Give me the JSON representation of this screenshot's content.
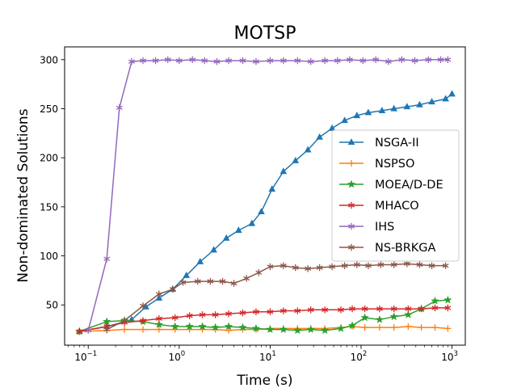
{
  "chart_data": {
    "type": "line",
    "title": "MOTSP",
    "xlabel": "Time (s)",
    "ylabel": "Non-dominated Solutions",
    "xscale": "log",
    "xlim": [
      0.055,
      1400
    ],
    "ylim": [
      9,
      313
    ],
    "x_ticks": [
      {
        "value": 0.1,
        "base": "10",
        "exp": "−1"
      },
      {
        "value": 1,
        "base": "10",
        "exp": "0"
      },
      {
        "value": 10,
        "base": "10",
        "exp": "1"
      },
      {
        "value": 100,
        "base": "10",
        "exp": "2"
      },
      {
        "value": 1000,
        "base": "10",
        "exp": "3"
      }
    ],
    "y_ticks": [
      "50",
      "100",
      "150",
      "200",
      "250",
      "300"
    ],
    "grid": false,
    "legend_position": "center-right",
    "series": [
      {
        "name": "NSGA-II",
        "color": "#1f77b4",
        "marker": "triangle",
        "points": [
          [
            0.08,
            23
          ],
          [
            0.16,
            28
          ],
          [
            0.3,
            35
          ],
          [
            0.43,
            48
          ],
          [
            0.6,
            57
          ],
          [
            0.85,
            66
          ],
          [
            1.2,
            80
          ],
          [
            1.7,
            94
          ],
          [
            2.4,
            106
          ],
          [
            3.3,
            118
          ],
          [
            4.5,
            126
          ],
          [
            6.3,
            133
          ],
          [
            8,
            145
          ],
          [
            10.5,
            168
          ],
          [
            14,
            186
          ],
          [
            19,
            197
          ],
          [
            26,
            208
          ],
          [
            35,
            221
          ],
          [
            48,
            230
          ],
          [
            66,
            238
          ],
          [
            90,
            243
          ],
          [
            120,
            246
          ],
          [
            170,
            248
          ],
          [
            230,
            250
          ],
          [
            320,
            252
          ],
          [
            440,
            254
          ],
          [
            600,
            257
          ],
          [
            850,
            260
          ],
          [
            1000,
            265
          ]
        ]
      },
      {
        "name": "NSPSO",
        "color": "#ff7f0e",
        "marker": "plus",
        "points": [
          [
            0.08,
            23
          ],
          [
            0.16,
            24
          ],
          [
            0.25,
            25
          ],
          [
            0.4,
            25
          ],
          [
            0.6,
            25
          ],
          [
            0.9,
            25
          ],
          [
            1.3,
            25
          ],
          [
            1.8,
            25
          ],
          [
            2.5,
            25
          ],
          [
            3.5,
            24
          ],
          [
            5,
            25
          ],
          [
            7,
            25
          ],
          [
            10,
            26
          ],
          [
            14,
            26
          ],
          [
            20,
            26
          ],
          [
            28,
            26
          ],
          [
            40,
            26
          ],
          [
            60,
            27
          ],
          [
            80,
            28
          ],
          [
            110,
            27
          ],
          [
            160,
            27
          ],
          [
            230,
            27
          ],
          [
            330,
            28
          ],
          [
            460,
            27
          ],
          [
            650,
            27
          ],
          [
            900,
            26
          ]
        ]
      },
      {
        "name": "MOEA/D-DE",
        "color": "#2ca02c",
        "marker": "star",
        "points": [
          [
            0.08,
            23
          ],
          [
            0.16,
            33
          ],
          [
            0.25,
            34
          ],
          [
            0.4,
            33
          ],
          [
            0.6,
            30
          ],
          [
            0.9,
            28
          ],
          [
            1.3,
            28
          ],
          [
            1.8,
            28
          ],
          [
            2.5,
            27
          ],
          [
            3.5,
            28
          ],
          [
            5,
            27
          ],
          [
            7,
            26
          ],
          [
            10,
            25
          ],
          [
            14,
            25
          ],
          [
            20,
            24
          ],
          [
            28,
            25
          ],
          [
            40,
            24
          ],
          [
            60,
            26
          ],
          [
            80,
            29
          ],
          [
            110,
            37
          ],
          [
            160,
            35
          ],
          [
            230,
            38
          ],
          [
            330,
            40
          ],
          [
            460,
            46
          ],
          [
            650,
            54
          ],
          [
            900,
            55
          ]
        ]
      },
      {
        "name": "MHACO",
        "color": "#d62728",
        "marker": "asterisk",
        "points": [
          [
            0.08,
            23
          ],
          [
            0.16,
            28
          ],
          [
            0.25,
            32
          ],
          [
            0.4,
            34
          ],
          [
            0.6,
            36
          ],
          [
            0.9,
            37
          ],
          [
            1.3,
            39
          ],
          [
            1.8,
            40
          ],
          [
            2.5,
            40
          ],
          [
            3.5,
            41
          ],
          [
            5,
            42
          ],
          [
            7,
            43
          ],
          [
            10,
            43
          ],
          [
            14,
            44
          ],
          [
            20,
            44
          ],
          [
            28,
            45
          ],
          [
            40,
            45
          ],
          [
            60,
            45
          ],
          [
            80,
            46
          ],
          [
            110,
            46
          ],
          [
            160,
            46
          ],
          [
            230,
            46
          ],
          [
            330,
            46
          ],
          [
            460,
            46
          ],
          [
            650,
            47
          ],
          [
            900,
            47
          ]
        ]
      },
      {
        "name": "IHS",
        "color": "#9467bd",
        "marker": "asterisk",
        "points": [
          [
            0.1,
            24
          ],
          [
            0.16,
            97
          ],
          [
            0.22,
            251
          ],
          [
            0.3,
            298
          ],
          [
            0.4,
            299
          ],
          [
            0.55,
            299
          ],
          [
            0.75,
            300
          ],
          [
            1,
            299
          ],
          [
            1.4,
            300
          ],
          [
            1.9,
            299
          ],
          [
            2.6,
            298
          ],
          [
            3.5,
            299
          ],
          [
            5,
            299
          ],
          [
            7,
            298
          ],
          [
            10,
            299
          ],
          [
            14,
            299
          ],
          [
            20,
            299
          ],
          [
            28,
            298
          ],
          [
            40,
            299
          ],
          [
            55,
            299
          ],
          [
            75,
            300
          ],
          [
            105,
            299
          ],
          [
            145,
            300
          ],
          [
            200,
            298
          ],
          [
            280,
            300
          ],
          [
            390,
            299
          ],
          [
            550,
            300
          ],
          [
            750,
            300
          ],
          [
            900,
            300
          ]
        ]
      },
      {
        "name": "NS-BRKGA",
        "color": "#8c564b",
        "marker": "asterisk",
        "points": [
          [
            0.16,
            25
          ],
          [
            0.25,
            34
          ],
          [
            0.4,
            49
          ],
          [
            0.6,
            61
          ],
          [
            0.85,
            66
          ],
          [
            1.1,
            73
          ],
          [
            1.6,
            74
          ],
          [
            2.2,
            74
          ],
          [
            3,
            74
          ],
          [
            4,
            72
          ],
          [
            5.5,
            77
          ],
          [
            7.5,
            83
          ],
          [
            10,
            89
          ],
          [
            14,
            90
          ],
          [
            19,
            88
          ],
          [
            26,
            87
          ],
          [
            35,
            88
          ],
          [
            48,
            89
          ],
          [
            66,
            90
          ],
          [
            90,
            91
          ],
          [
            120,
            90
          ],
          [
            165,
            91
          ],
          [
            230,
            91
          ],
          [
            320,
            92
          ],
          [
            440,
            91
          ],
          [
            600,
            90
          ],
          [
            850,
            90
          ]
        ]
      }
    ]
  }
}
